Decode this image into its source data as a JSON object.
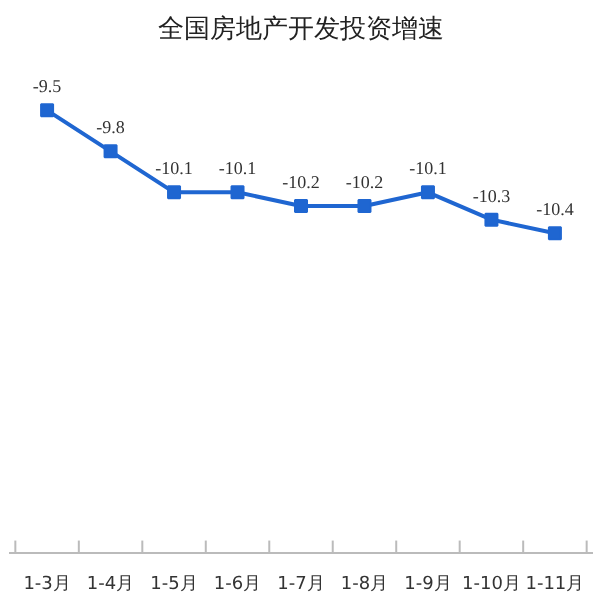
{
  "chart_data": {
    "type": "line",
    "title": "全国房地产开发投资增速",
    "categories": [
      "1-3月",
      "1-4月",
      "1-5月",
      "1-6月",
      "1-7月",
      "1-8月",
      "1-9月",
      "1-10月",
      "1-11月"
    ],
    "series": [
      {
        "color": "#1f66d1",
        "values": [
          -9.5,
          -9.8,
          -10.1,
          -10.1,
          -10.2,
          -10.2,
          -10.1,
          -10.3,
          -10.4
        ]
      }
    ],
    "data_labels": true,
    "marker": "square",
    "grid": false
  }
}
